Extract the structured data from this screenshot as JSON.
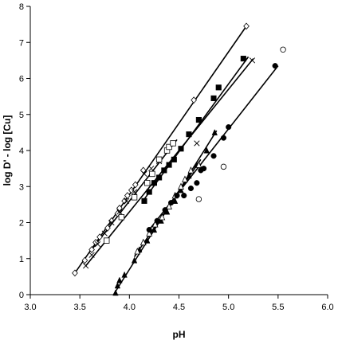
{
  "chart_data": {
    "type": "scatter",
    "title": "",
    "xlabel": "pH",
    "ylabel": "log D' - log [Cu]",
    "xlim": [
      3.0,
      6.0
    ],
    "ylim": [
      0,
      8
    ],
    "x_ticks": [
      "3.0",
      "3.5",
      "4.0",
      "4.5",
      "5.0",
      "5.5",
      "6.0"
    ],
    "y_ticks": [
      "0",
      "1",
      "2",
      "3",
      "4",
      "5",
      "6",
      "7",
      "8"
    ],
    "grid": false,
    "legend": "none",
    "series": [
      {
        "marker": "diamond-open",
        "points": [
          [
            3.45,
            0.6
          ],
          [
            3.55,
            0.95
          ],
          [
            3.62,
            1.25
          ],
          [
            3.66,
            1.45
          ],
          [
            3.7,
            1.6
          ],
          [
            3.78,
            1.85
          ],
          [
            3.82,
            2.05
          ],
          [
            3.88,
            2.25
          ],
          [
            3.9,
            2.4
          ],
          [
            3.95,
            2.6
          ],
          [
            3.98,
            2.75
          ],
          [
            4.02,
            2.9
          ],
          [
            4.06,
            3.05
          ],
          [
            4.14,
            3.45
          ],
          [
            4.65,
            5.4
          ],
          [
            5.18,
            7.45
          ]
        ],
        "fit": [
          [
            3.45,
            0.6
          ],
          [
            5.18,
            7.45
          ]
        ]
      },
      {
        "marker": "cross",
        "points": [
          [
            3.56,
            0.8
          ],
          [
            3.62,
            1.1
          ],
          [
            3.68,
            1.4
          ],
          [
            3.75,
            1.7
          ],
          [
            3.82,
            2.0
          ],
          [
            3.9,
            2.3
          ],
          [
            3.97,
            2.6
          ],
          [
            4.05,
            2.85
          ],
          [
            4.15,
            3.35
          ],
          [
            4.22,
            3.5
          ],
          [
            4.3,
            3.7
          ],
          [
            4.68,
            4.2
          ],
          [
            5.24,
            6.5
          ]
        ],
        "fit": [
          [
            3.56,
            0.8
          ],
          [
            5.25,
            6.55
          ]
        ]
      },
      {
        "marker": "square-open",
        "points": [
          [
            3.77,
            1.5
          ],
          [
            3.92,
            2.15
          ],
          [
            4.05,
            2.7
          ],
          [
            4.18,
            3.1
          ],
          [
            4.23,
            3.35
          ],
          [
            4.3,
            3.75
          ],
          [
            4.38,
            4.0
          ],
          [
            4.4,
            4.1
          ],
          [
            4.44,
            4.2
          ]
        ],
        "fit": [
          [
            3.62,
            1.25
          ],
          [
            4.48,
            4.3
          ]
        ]
      },
      {
        "marker": "square-filled",
        "points": [
          [
            4.15,
            2.6
          ],
          [
            4.2,
            2.85
          ],
          [
            4.25,
            3.1
          ],
          [
            4.3,
            3.25
          ],
          [
            4.35,
            3.45
          ],
          [
            4.4,
            3.6
          ],
          [
            4.45,
            3.75
          ],
          [
            4.52,
            4.05
          ],
          [
            4.6,
            4.45
          ],
          [
            4.7,
            4.85
          ],
          [
            4.85,
            5.45
          ],
          [
            4.9,
            5.75
          ],
          [
            5.15,
            6.55
          ]
        ],
        "fit": [
          [
            4.15,
            2.65
          ],
          [
            5.2,
            6.6
          ]
        ]
      },
      {
        "marker": "triangle-filled",
        "points": [
          [
            3.86,
            0.05
          ],
          [
            3.88,
            0.25
          ],
          [
            3.9,
            0.4
          ],
          [
            3.95,
            0.55
          ],
          [
            4.05,
            0.95
          ],
          [
            4.1,
            1.25
          ],
          [
            4.18,
            1.5
          ],
          [
            4.25,
            1.8
          ],
          [
            4.32,
            2.05
          ],
          [
            4.38,
            2.3
          ],
          [
            4.46,
            2.6
          ],
          [
            4.52,
            2.9
          ],
          [
            4.6,
            3.3
          ],
          [
            4.68,
            3.6
          ],
          [
            4.78,
            4.0
          ],
          [
            4.86,
            4.5
          ]
        ],
        "fit": [
          [
            3.84,
            0.0
          ],
          [
            4.88,
            4.55
          ]
        ]
      },
      {
        "marker": "triangle-open",
        "points": [
          [
            4.08,
            1.2
          ],
          [
            4.14,
            1.45
          ],
          [
            4.2,
            1.7
          ],
          [
            4.26,
            1.95
          ],
          [
            4.33,
            2.15
          ],
          [
            4.4,
            2.45
          ],
          [
            4.46,
            2.75
          ],
          [
            4.52,
            3.0
          ],
          [
            4.56,
            3.2
          ],
          [
            4.62,
            3.45
          ],
          [
            4.7,
            3.6
          ]
        ],
        "fit": [
          [
            4.05,
            1.05
          ],
          [
            4.72,
            3.75
          ]
        ]
      },
      {
        "marker": "circle-filled",
        "points": [
          [
            4.2,
            1.8
          ],
          [
            4.28,
            2.05
          ],
          [
            4.36,
            2.35
          ],
          [
            4.42,
            2.55
          ],
          [
            4.48,
            2.75
          ],
          [
            4.55,
            2.75
          ],
          [
            4.62,
            2.95
          ],
          [
            4.68,
            3.1
          ],
          [
            4.72,
            3.45
          ],
          [
            4.75,
            3.5
          ],
          [
            4.85,
            3.85
          ],
          [
            4.95,
            4.35
          ],
          [
            5.0,
            4.65
          ],
          [
            5.47,
            6.35
          ]
        ],
        "fit": [
          [
            4.2,
            1.8
          ],
          [
            5.5,
            6.35
          ]
        ]
      },
      {
        "marker": "circle-open",
        "points": [
          [
            4.7,
            2.65
          ],
          [
            4.95,
            3.55
          ],
          [
            5.55,
            6.8
          ]
        ],
        "fit": null
      }
    ]
  }
}
